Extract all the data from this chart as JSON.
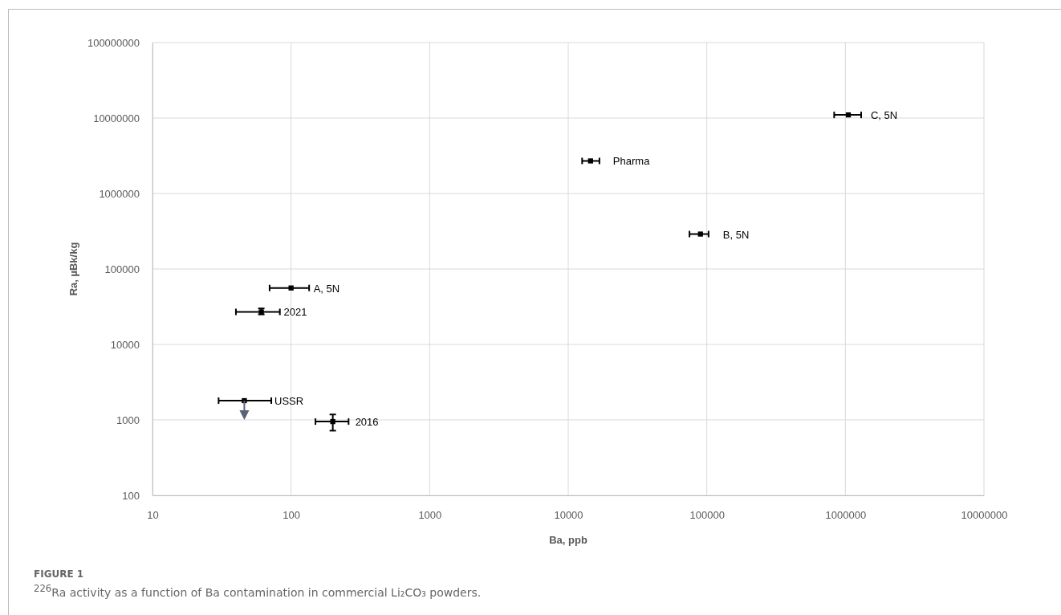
{
  "chart_data": {
    "type": "scatter",
    "xlabel": "Ba, ppb",
    "ylabel": "Ra, µBk/kg",
    "log": "xy",
    "xlim": [
      10,
      10000000
    ],
    "ylim": [
      100,
      100000000
    ],
    "xticks": [
      10,
      100,
      1000,
      10000,
      100000,
      1000000,
      10000000
    ],
    "yticks": [
      100,
      1000,
      10000,
      100000,
      1000000,
      10000000,
      100000000
    ],
    "grid": true,
    "marker": "square",
    "series": [
      {
        "color": "#000000",
        "x": [
          100,
          61,
          46,
          200,
          14500,
          90000,
          1050000
        ],
        "values": [
          56000,
          27000,
          1800,
          950,
          2700000,
          290000,
          11000000
        ],
        "xerrors": [
          [
            70,
            135
          ],
          [
            40,
            83
          ],
          [
            30,
            72
          ],
          [
            150,
            260
          ],
          [
            12600,
            16800
          ],
          [
            75000,
            103000
          ],
          [
            830000,
            1300000
          ]
        ],
        "errors": [
          null,
          [
            25000,
            30000
          ],
          null,
          [
            720,
            1180
          ],
          null,
          null,
          null
        ]
      }
    ],
    "annotations": [
      {
        "text": "A, 5N",
        "x": 100,
        "y": 56000
      },
      {
        "text": "2021",
        "x": 61,
        "y": 27000
      },
      {
        "text": "USSR",
        "x": 46,
        "y": 1800
      },
      {
        "text": "2016",
        "x": 200,
        "y": 950
      },
      {
        "text": "Pharma",
        "x": 14500,
        "y": 2700000
      },
      {
        "text": "B, 5N",
        "x": 90000,
        "y": 290000
      },
      {
        "text": "C, 5N",
        "x": 1050000,
        "y": 11000000
      },
      "FIGURE 1",
      "$^{226}$Ra activity as a function of Ba contamination in commercial Li₂CO₃ powders."
    ]
  }
}
